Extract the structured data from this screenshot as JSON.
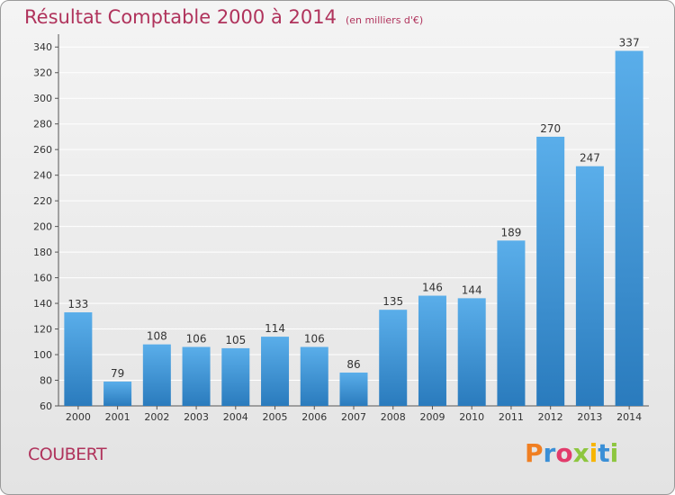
{
  "header": {
    "title": "Résultat Comptable 2000 à 2014",
    "unit": "(en milliers d'€)"
  },
  "footer": {
    "commune": "COUBERT",
    "brand": "Proxiti"
  },
  "colors": {
    "title": "#b0335c",
    "bar_top": "#5aaeea",
    "bar_bottom": "#2a7bbd",
    "grid": "#ffffff"
  },
  "chart_data": {
    "type": "bar",
    "title": "Résultat Comptable 2000 à 2014",
    "ylabel": "",
    "xlabel": "",
    "ylim": [
      60,
      350
    ],
    "yticks": [
      60,
      80,
      100,
      120,
      140,
      160,
      180,
      200,
      220,
      240,
      260,
      280,
      300,
      320,
      340
    ],
    "grid": true,
    "categories": [
      "2000",
      "2001",
      "2002",
      "2003",
      "2004",
      "2005",
      "2006",
      "2007",
      "2008",
      "2009",
      "2010",
      "2011",
      "2012",
      "2013",
      "2014"
    ],
    "values": [
      133,
      79,
      108,
      106,
      105,
      114,
      106,
      86,
      135,
      146,
      144,
      189,
      270,
      247,
      337
    ]
  }
}
